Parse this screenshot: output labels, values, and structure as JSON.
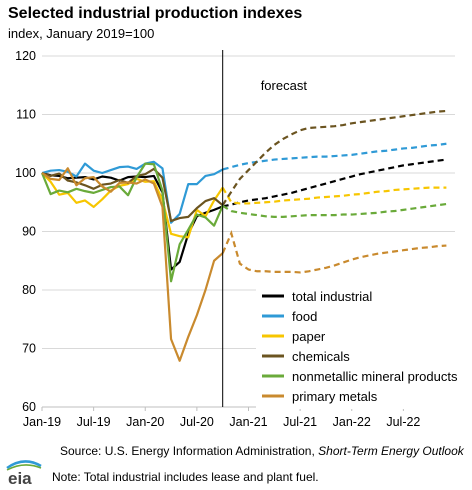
{
  "header": {
    "title": "Selected industrial production indexes",
    "subtitle": "index, January 2019=100"
  },
  "footer": {
    "source_prefix": "Source: U.S. Energy Information Administration,",
    "source_italic": "Short-Term Energy Outlook",
    "note": "Note: Total industrial includes lease and plant fuel.",
    "logo_text": "eia"
  },
  "chart_data": {
    "type": "line",
    "title": "Selected industrial production indexes",
    "ylabel": "index, January 2019=100",
    "ylim": [
      60,
      120
    ],
    "yticks": [
      60,
      70,
      80,
      90,
      100,
      110,
      120
    ],
    "xlim": [
      "2019-01",
      "2023-01"
    ],
    "xticks": [
      "Jan-19",
      "Jul-19",
      "Jan-20",
      "Jul-20",
      "Jan-21",
      "Jul-21",
      "Jan-22",
      "Jul-22"
    ],
    "forecast_start": "2020-10",
    "annotations": [
      {
        "text": "forecast"
      }
    ],
    "grid": "horizontal",
    "legend": "bottom-right",
    "x": [
      "2019-01",
      "2019-02",
      "2019-03",
      "2019-04",
      "2019-05",
      "2019-06",
      "2019-07",
      "2019-08",
      "2019-09",
      "2019-10",
      "2019-11",
      "2019-12",
      "2020-01",
      "2020-02",
      "2020-03",
      "2020-04",
      "2020-05",
      "2020-06",
      "2020-07",
      "2020-08",
      "2020-09",
      "2020-10",
      "2020-11",
      "2020-12",
      "2021-01",
      "2021-02",
      "2021-03",
      "2021-04",
      "2021-05",
      "2021-06",
      "2021-07",
      "2021-08",
      "2021-09",
      "2021-10",
      "2021-11",
      "2021-12",
      "2022-01",
      "2022-02",
      "2022-03",
      "2022-04",
      "2022-05",
      "2022-06",
      "2022-07",
      "2022-08",
      "2022-09",
      "2022-10",
      "2022-11",
      "2022-12"
    ],
    "series": [
      {
        "name": "total industrial",
        "color": "#000000",
        "values": [
          100,
          99.6,
          99.5,
          99.1,
          99.2,
          99.3,
          98.9,
          99.4,
          99.2,
          98.7,
          99.3,
          99.4,
          99.3,
          99.5,
          96.7,
          83.5,
          84.8,
          89.6,
          92.6,
          93.2,
          93.7,
          94.3,
          94.6,
          95.0,
          95.3,
          95.5,
          95.7,
          96.0,
          96.3,
          96.6,
          97.0,
          97.4,
          97.8,
          98.2,
          98.6,
          99.0,
          99.4,
          99.8,
          100.1,
          100.4,
          100.7,
          101.0,
          101.3,
          101.5,
          101.7,
          101.9,
          102.1,
          102.3
        ]
      },
      {
        "name": "food",
        "color": "#2f9ad6",
        "values": [
          100,
          100.4,
          100.5,
          100.2,
          99.4,
          101.6,
          100.4,
          100.0,
          100.5,
          101.0,
          101.1,
          100.7,
          101.6,
          101.9,
          100.8,
          91.5,
          93.0,
          98.1,
          98.1,
          99.5,
          99.8,
          100.6,
          101.0,
          101.4,
          101.7,
          101.9,
          102.1,
          102.3,
          102.4,
          102.5,
          102.6,
          102.7,
          102.8,
          102.8,
          102.9,
          103.0,
          103.1,
          103.3,
          103.5,
          103.7,
          103.8,
          104.0,
          104.2,
          104.3,
          104.5,
          104.7,
          104.8,
          105.0
        ]
      },
      {
        "name": "paper",
        "color": "#f7c600",
        "values": [
          100,
          98.5,
          96.3,
          96.6,
          94.9,
          95.3,
          94.2,
          95.5,
          97.0,
          97.8,
          98.1,
          99.0,
          98.5,
          98.6,
          95.4,
          89.6,
          89.2,
          89.0,
          93.7,
          92.6,
          95.3,
          97.5,
          95.0,
          94.8,
          94.8,
          94.9,
          95.0,
          95.1,
          95.3,
          95.4,
          95.5,
          95.6,
          95.8,
          95.9,
          96.0,
          96.1,
          96.3,
          96.4,
          96.6,
          96.8,
          96.9,
          97.1,
          97.2,
          97.3,
          97.4,
          97.5,
          97.5,
          97.5
        ]
      },
      {
        "name": "chemicals",
        "color": "#6b5420",
        "values": [
          100,
          99.5,
          99.9,
          98.7,
          98.4,
          97.9,
          97.3,
          98.0,
          98.2,
          98.8,
          98.3,
          99.5,
          99.8,
          100.7,
          99.2,
          91.8,
          92.3,
          92.5,
          94.0,
          95.2,
          95.7,
          94.5,
          96.8,
          99.0,
          100.5,
          102.0,
          103.5,
          104.8,
          105.8,
          106.6,
          107.3,
          107.7,
          107.8,
          107.9,
          108.0,
          108.2,
          108.5,
          108.7,
          108.9,
          109.1,
          109.3,
          109.5,
          109.7,
          109.9,
          110.1,
          110.3,
          110.5,
          110.6
        ]
      },
      {
        "name": "nonmetallic mineral products",
        "color": "#6aaa3a",
        "values": [
          100,
          96.4,
          97.0,
          96.7,
          97.3,
          96.9,
          96.6,
          97.1,
          97.6,
          97.7,
          96.2,
          99.3,
          101.6,
          101.5,
          97.0,
          81.5,
          87.8,
          90.3,
          92.9,
          92.4,
          91.0,
          94.4,
          93.5,
          93.2,
          93.0,
          92.8,
          92.6,
          92.5,
          92.5,
          92.6,
          92.7,
          92.8,
          92.8,
          92.8,
          92.8,
          92.9,
          92.9,
          93.0,
          93.1,
          93.2,
          93.4,
          93.5,
          93.7,
          93.9,
          94.1,
          94.3,
          94.5,
          94.7
        ]
      },
      {
        "name": "primary metals",
        "color": "#c98a2e",
        "values": [
          100,
          99.0,
          98.8,
          100.8,
          97.9,
          99.1,
          99.3,
          97.7,
          96.8,
          98.3,
          98.4,
          98.2,
          98.9,
          98.2,
          94.2,
          71.6,
          67.9,
          72.0,
          75.7,
          80.0,
          85.0,
          86.3,
          89.7,
          84.5,
          83.5,
          83.2,
          83.2,
          83.1,
          83.1,
          83.1,
          83.0,
          83.2,
          83.5,
          83.8,
          84.2,
          84.7,
          85.2,
          85.6,
          85.9,
          86.2,
          86.4,
          86.6,
          86.8,
          87.0,
          87.2,
          87.3,
          87.5,
          87.6
        ]
      }
    ]
  }
}
